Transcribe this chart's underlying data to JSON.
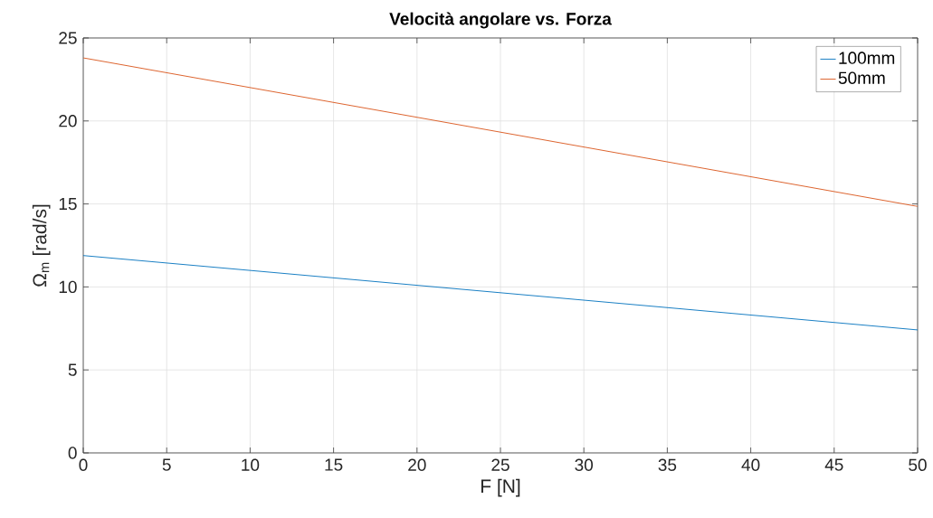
{
  "chart_data": {
    "type": "line",
    "title": "Velocità angolare vs. Forza",
    "xlabel": "F [N]",
    "ylabel": "Ω$_{m}$ [rad/s]",
    "x": [
      0,
      50
    ],
    "series": [
      {
        "name": "100mm",
        "color": "#0072bd",
        "values": [
          11.89,
          7.41
        ]
      },
      {
        "name": "50mm",
        "color": "#d95319",
        "values": [
          23.8,
          14.85
        ]
      }
    ],
    "xlim": [
      0,
      50
    ],
    "xticks": [
      0,
      5,
      10,
      15,
      20,
      25,
      30,
      35,
      40,
      45,
      50
    ],
    "ylim": [
      0,
      25
    ],
    "yticks": [
      0,
      5,
      10,
      15,
      20,
      25
    ],
    "grid": true,
    "legend": "top right",
    "marker": "none",
    "line_style": "solid"
  }
}
